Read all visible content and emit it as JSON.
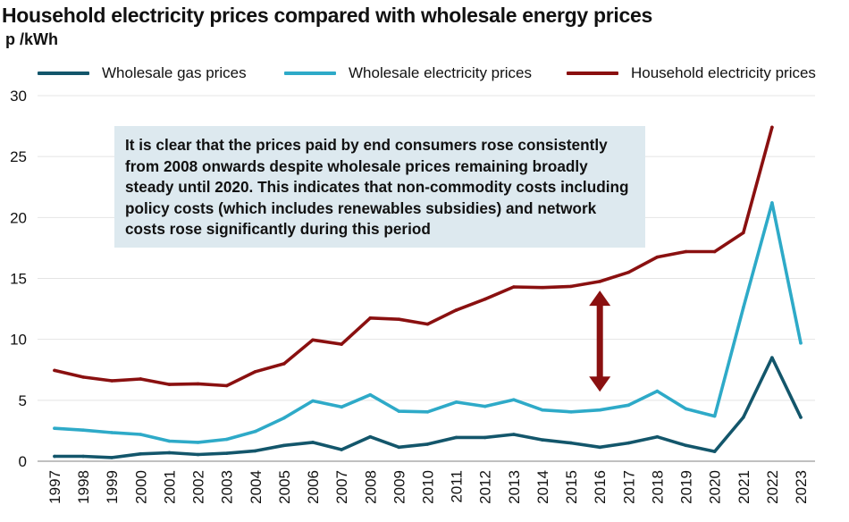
{
  "title": "Household electricity prices compared with wholesale energy prices",
  "unit_label": "p /kWh",
  "annotation": "It is clear that the prices paid by end consumers rose consistently from 2008 onwards despite wholesale prices remaining broadly steady until 2020. This indicates that non-commodity costs including policy costs (which includes renewables subsidies) and network costs rose significantly during this period",
  "colors": {
    "gas": "#13566b",
    "electricity": "#2eaac8",
    "household": "#8a1010",
    "arrow": "#8a1010",
    "grid": "#e4e4e4",
    "annotation_bg": "#dde9ef"
  },
  "chart_data": {
    "type": "line",
    "title": "Household electricity prices compared with wholesale energy prices",
    "xlabel": "",
    "ylabel": "p /kWh",
    "ylim": [
      0,
      30
    ],
    "yticks": [
      0,
      5,
      10,
      15,
      20,
      25,
      30
    ],
    "grid": true,
    "legend_position": "top",
    "categories": [
      "1997",
      "1998",
      "1999",
      "2000",
      "2001",
      "2002",
      "2003",
      "2004",
      "2005",
      "2006",
      "2007",
      "2008",
      "2009",
      "2010",
      "2011",
      "2012",
      "2013",
      "2014",
      "2015",
      "2016",
      "2017",
      "2018",
      "2019",
      "2020",
      "2021",
      "2022",
      "2023"
    ],
    "series": [
      {
        "name": "Wholesale gas prices",
        "color": "#13566b",
        "values": [
          0.4,
          0.4,
          0.3,
          0.6,
          0.7,
          0.55,
          0.65,
          0.85,
          1.3,
          1.55,
          0.95,
          2.0,
          1.15,
          1.4,
          1.95,
          1.95,
          2.2,
          1.75,
          1.5,
          1.15,
          1.5,
          2.0,
          1.3,
          0.8,
          3.6,
          8.5,
          3.6
        ]
      },
      {
        "name": "Wholesale electricity prices",
        "color": "#2eaac8",
        "values": [
          2.7,
          2.55,
          2.35,
          2.2,
          1.65,
          1.55,
          1.8,
          2.45,
          3.55,
          4.95,
          4.45,
          5.45,
          4.1,
          4.05,
          4.85,
          4.5,
          5.05,
          4.2,
          4.05,
          4.2,
          4.6,
          5.75,
          4.3,
          3.7,
          12.6,
          21.2,
          9.7
        ]
      },
      {
        "name": "Household electricity prices",
        "color": "#8a1010",
        "values": [
          7.45,
          6.9,
          6.6,
          6.75,
          6.3,
          6.35,
          6.2,
          7.35,
          8.0,
          9.95,
          9.6,
          11.75,
          11.65,
          11.25,
          12.4,
          13.3,
          14.3,
          14.25,
          14.35,
          14.75,
          15.5,
          16.75,
          17.2,
          17.2,
          18.75,
          27.4,
          null
        ]
      }
    ],
    "arrow": {
      "x": "2016",
      "from": 5.7,
      "to": 14.0
    }
  }
}
